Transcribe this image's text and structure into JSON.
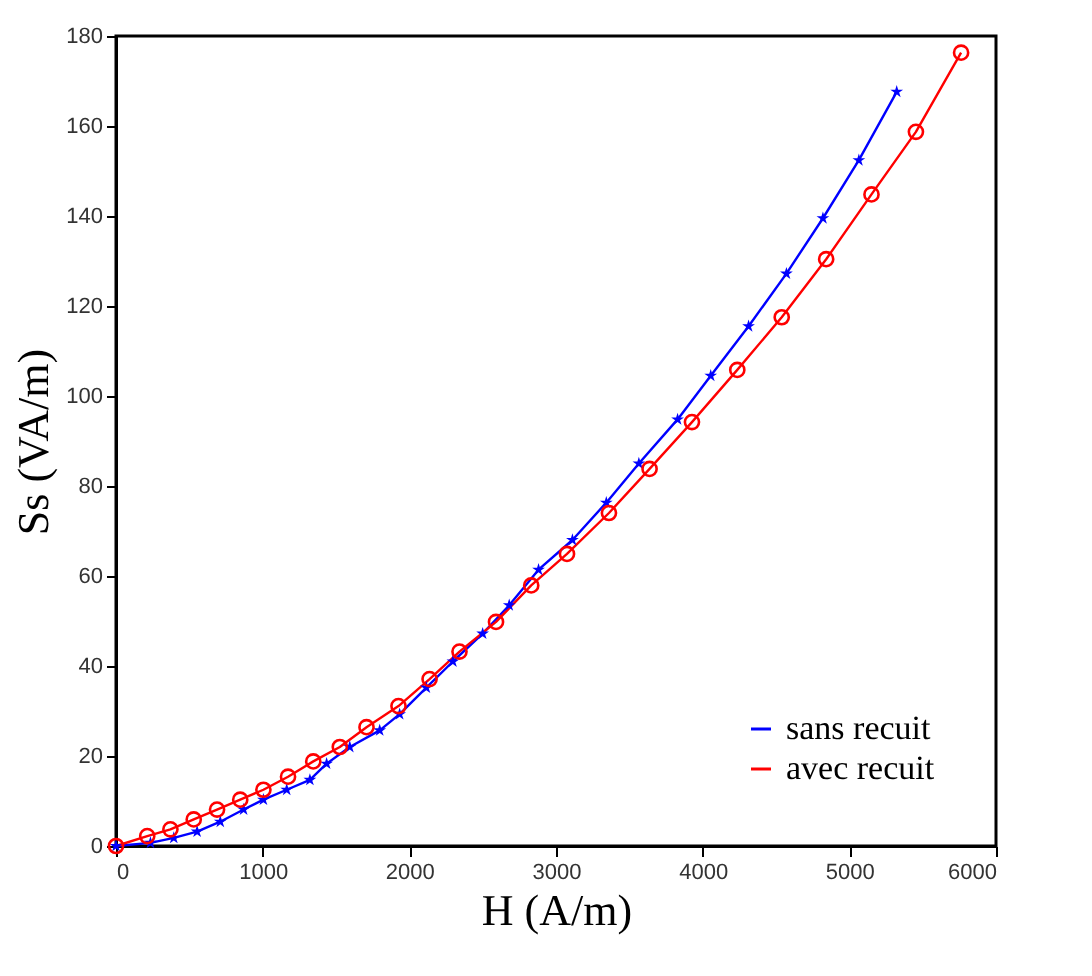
{
  "chart_data": {
    "type": "line",
    "xlabel": "H (A/m)",
    "ylabel": "Ss (VA/m)",
    "xlim": [
      0,
      6000
    ],
    "xticks": [
      0,
      1000,
      2000,
      3000,
      4000,
      5000,
      6000
    ],
    "ylim": [
      0,
      180
    ],
    "yticks": [
      0,
      20,
      40,
      60,
      80,
      100,
      120,
      140,
      160,
      180
    ],
    "grid": false,
    "legend": "bottom right",
    "series": [
      {
        "name": "sans recuit",
        "color": "#0000ff",
        "marker": "star",
        "x": [
          0,
          235,
          394,
          553,
          711,
          870,
          1005,
          1164,
          1322,
          1436,
          1594,
          1798,
          1934,
          2116,
          2297,
          2500,
          2681,
          2881,
          3112,
          3343,
          3565,
          3829,
          4055,
          4313,
          4571,
          4820,
          5065,
          5323
        ],
        "values": [
          0,
          0.7,
          1.8,
          3.2,
          5.4,
          8.1,
          10.3,
          12.5,
          14.7,
          18.3,
          22,
          25.7,
          29.3,
          35.2,
          41,
          47.2,
          53.5,
          61.4,
          68,
          76.3,
          85,
          94.8,
          104.5,
          115.5,
          127.2,
          139.5,
          152.4,
          167.6
        ]
      },
      {
        "name": "avec recuit",
        "color": "#ff0000",
        "marker": "circle",
        "x": [
          0,
          213,
          371,
          530,
          689,
          847,
          1005,
          1173,
          1345,
          1526,
          1708,
          1926,
          2138,
          2342,
          2591,
          2831,
          3075,
          3361,
          3638,
          3927,
          4236,
          4539,
          4842,
          5151,
          5454,
          5762
        ],
        "values": [
          0,
          2.2,
          3.7,
          5.9,
          8.1,
          10.3,
          12.5,
          15.4,
          18.8,
          22,
          26.4,
          31.1,
          37.1,
          43.2,
          49.8,
          57.9,
          64.9,
          74,
          83.8,
          94.2,
          105.8,
          117.5,
          130.4,
          144.8,
          158.7,
          176.3
        ]
      }
    ]
  }
}
